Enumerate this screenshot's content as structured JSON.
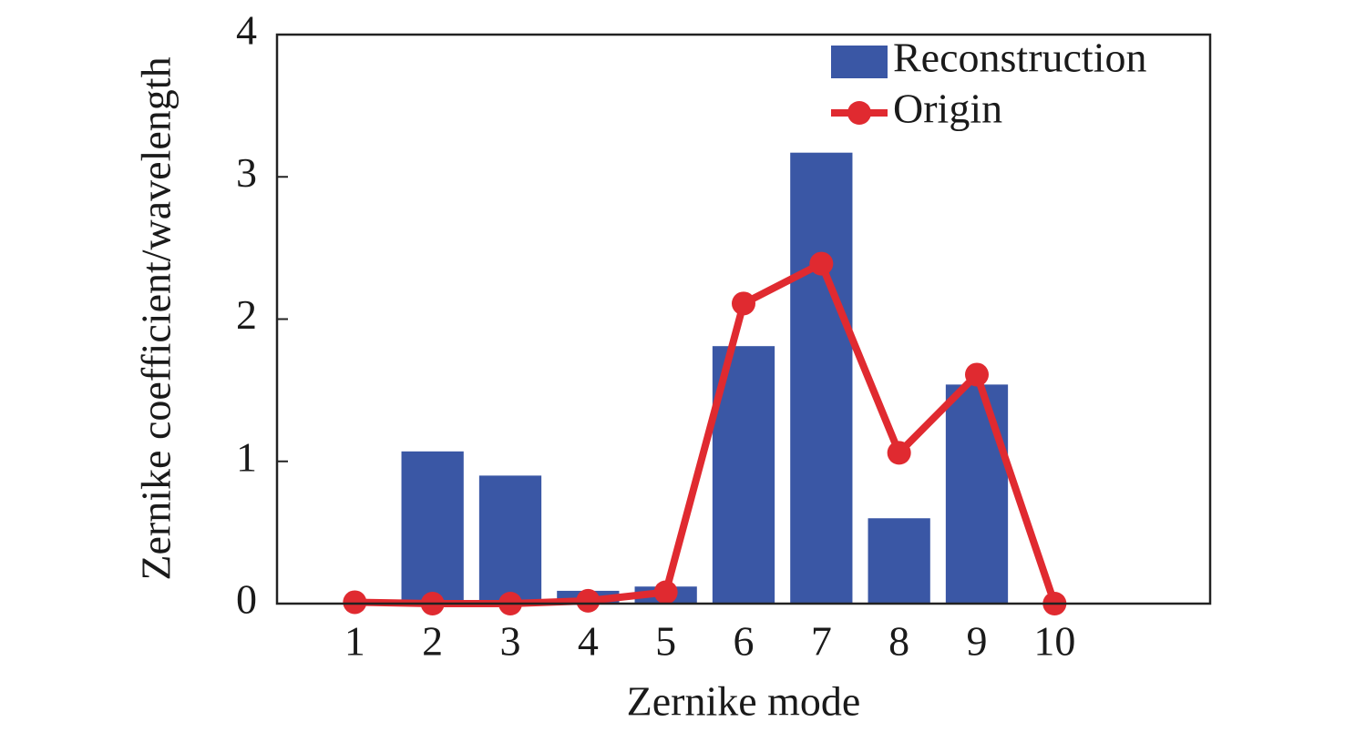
{
  "chart_data": {
    "type": "bar",
    "x_label": "Zernike mode",
    "y_label": "Zernike coefficient/wavelength",
    "x": [
      1,
      2,
      3,
      4,
      5,
      6,
      7,
      8,
      9,
      10
    ],
    "xlim": [
      0,
      12
    ],
    "xticks": [
      1,
      2,
      3,
      4,
      5,
      6,
      7,
      8,
      9,
      10
    ],
    "ylim": [
      0,
      4
    ],
    "yticks": [
      0,
      1,
      2,
      3,
      4
    ],
    "legend": "upper right",
    "series": [
      {
        "name": "Reconstruction",
        "type": "bar",
        "color": "#3a57a5",
        "values": [
          0,
          1.07,
          0.9,
          0.09,
          0.12,
          1.81,
          3.17,
          0.6,
          1.54,
          0
        ]
      },
      {
        "name": "Origin",
        "type": "line",
        "color": "#e02a30",
        "values": [
          0.01,
          0,
          0,
          0.02,
          0.08,
          2.11,
          2.39,
          1.06,
          1.61,
          0
        ]
      }
    ]
  }
}
